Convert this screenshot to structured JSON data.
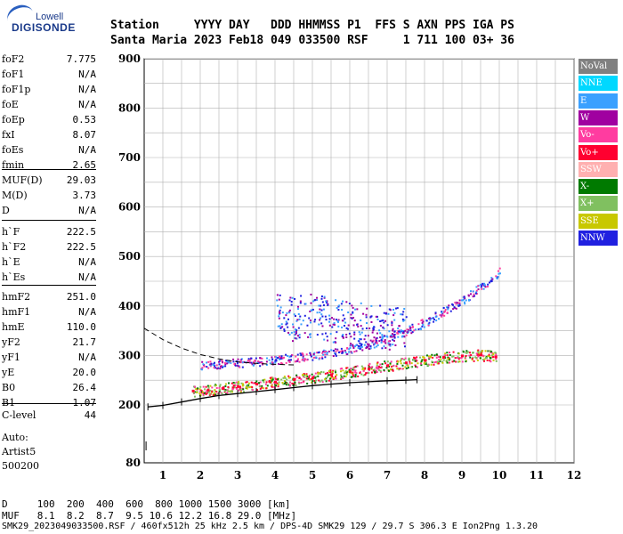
{
  "logo": {
    "line1": "Lowell",
    "line2": "DIGISONDE"
  },
  "header": {
    "row1": "Station     YYYY DAY   DDD HHMMSS P1  FFS S AXN PPS IGA PS",
    "row2": "Santa Maria 2023 Feb18 049 033500 RSF     1 711 100 03+ 36"
  },
  "params_group1": [
    {
      "name": "foF2",
      "value": "7.775"
    },
    {
      "name": "foF1",
      "value": "N/A"
    },
    {
      "name": "foF1p",
      "value": "N/A"
    },
    {
      "name": "foE",
      "value": "N/A"
    },
    {
      "name": "foEp",
      "value": "0.53"
    },
    {
      "name": "fxI",
      "value": "8.07"
    },
    {
      "name": "foEs",
      "value": "N/A"
    },
    {
      "name": "fmin",
      "value": "2.65"
    }
  ],
  "params_group2": [
    {
      "name": "MUF(D)",
      "value": "29.03"
    },
    {
      "name": "M(D)",
      "value": "3.73"
    },
    {
      "name": "D",
      "value": "N/A"
    }
  ],
  "params_group3": [
    {
      "name": "h`F",
      "value": "222.5"
    },
    {
      "name": "h`F2",
      "value": "222.5"
    },
    {
      "name": "h`E",
      "value": "N/A"
    },
    {
      "name": "h`Es",
      "value": "N/A"
    }
  ],
  "params_group4": [
    {
      "name": "hmF2",
      "value": "251.0"
    },
    {
      "name": "hmF1",
      "value": "N/A"
    },
    {
      "name": "hmE",
      "value": "110.0"
    },
    {
      "name": "yF2",
      "value": "21.7"
    },
    {
      "name": "yF1",
      "value": "N/A"
    },
    {
      "name": "yE",
      "value": "20.0"
    },
    {
      "name": "B0",
      "value": "26.4"
    },
    {
      "name": "B1",
      "value": "1.07"
    }
  ],
  "clevel": {
    "name": "C-level",
    "value": "44"
  },
  "autoscale": {
    "line1": "Auto:",
    "line2": "Artist5",
    "line3": "500200"
  },
  "legend": [
    {
      "label": "NoVal",
      "color": "#808080"
    },
    {
      "label": "NNE",
      "color": "#00d8ff"
    },
    {
      "label": "E",
      "color": "#3aa0ff"
    },
    {
      "label": "W",
      "color": "#a000a0"
    },
    {
      "label": "Vo-",
      "color": "#ff3ca0"
    },
    {
      "label": "Vo+",
      "color": "#ff0030"
    },
    {
      "label": "SSW",
      "color": "#ffb0b0"
    },
    {
      "label": "X-",
      "color": "#007a00"
    },
    {
      "label": "X+",
      "color": "#80c060"
    },
    {
      "label": "SSE",
      "color": "#c8c800"
    },
    {
      "label": "NNW",
      "color": "#2020e0"
    }
  ],
  "bottom": {
    "d_row": "D     100  200  400  600  800 1000 1500 3000 [km]",
    "muf_row": "MUF   8.1  8.2  8.7  9.5 10.6 12.2 16.8 29.0 [MHz]",
    "footer": "SMK29_2023049033500.RSF / 460fx512h 25 kHz 2.5 km / DPS-4D SMK29 129 / 29.7 S 306.3 E Ion2Png 1.3.20"
  },
  "chart_data": {
    "type": "scatter",
    "xlim": [
      0.5,
      12
    ],
    "ylim": [
      80,
      900
    ],
    "xticks": [
      1,
      2,
      3,
      4,
      5,
      6,
      7,
      8,
      9,
      10,
      11,
      12
    ],
    "yticks": [
      80,
      200,
      300,
      400,
      500,
      600,
      700,
      800,
      900
    ],
    "grid": true,
    "traces": [
      {
        "name": "O-trace",
        "points": [
          [
            1.8,
            229
          ],
          [
            2.2,
            231
          ],
          [
            2.6,
            234
          ],
          [
            3.0,
            238
          ],
          [
            3.5,
            243
          ],
          [
            4.0,
            247
          ],
          [
            4.5,
            252
          ],
          [
            5.0,
            256
          ],
          [
            5.5,
            262
          ],
          [
            6.0,
            268
          ],
          [
            6.5,
            274
          ],
          [
            7.0,
            280
          ],
          [
            7.5,
            286
          ],
          [
            8.0,
            291
          ],
          [
            8.5,
            297
          ],
          [
            9.0,
            300
          ],
          [
            9.5,
            302
          ],
          [
            9.9,
            298
          ]
        ]
      },
      {
        "name": "upper-trace",
        "points": [
          [
            2.0,
            280
          ],
          [
            2.5,
            283
          ],
          [
            3.0,
            286
          ],
          [
            3.5,
            289
          ],
          [
            4.0,
            292
          ],
          [
            4.5,
            296
          ],
          [
            5.0,
            300
          ],
          [
            5.5,
            306
          ],
          [
            6.0,
            314
          ],
          [
            6.5,
            324
          ],
          [
            7.0,
            335
          ],
          [
            7.5,
            350
          ],
          [
            8.0,
            368
          ],
          [
            8.5,
            390
          ],
          [
            9.0,
            412
          ],
          [
            9.5,
            440
          ],
          [
            10.0,
            470
          ]
        ]
      },
      {
        "name": "spread-F",
        "points": [
          [
            4.0,
            380
          ],
          [
            4.5,
            375
          ],
          [
            5.0,
            385
          ],
          [
            5.5,
            370
          ],
          [
            6.0,
            365
          ],
          [
            6.5,
            360
          ],
          [
            7.0,
            358
          ],
          [
            7.5,
            355
          ]
        ]
      }
    ],
    "profile": [
      [
        0.6,
        196
      ],
      [
        1.0,
        199
      ],
      [
        1.5,
        206
      ],
      [
        2.0,
        213
      ],
      [
        2.5,
        219
      ],
      [
        3.0,
        223
      ],
      [
        3.5,
        227
      ],
      [
        4.0,
        231
      ],
      [
        4.5,
        235
      ],
      [
        5.0,
        239
      ],
      [
        5.5,
        242
      ],
      [
        6.0,
        245
      ],
      [
        6.5,
        247
      ],
      [
        7.0,
        249
      ],
      [
        7.5,
        250
      ],
      [
        7.8,
        251
      ]
    ],
    "model_dashed": [
      [
        0.5,
        355
      ],
      [
        1.0,
        332
      ],
      [
        1.5,
        315
      ],
      [
        2.0,
        302
      ],
      [
        2.5,
        293
      ],
      [
        3.0,
        287
      ],
      [
        3.5,
        284
      ],
      [
        4.0,
        282
      ],
      [
        4.5,
        281
      ]
    ]
  }
}
